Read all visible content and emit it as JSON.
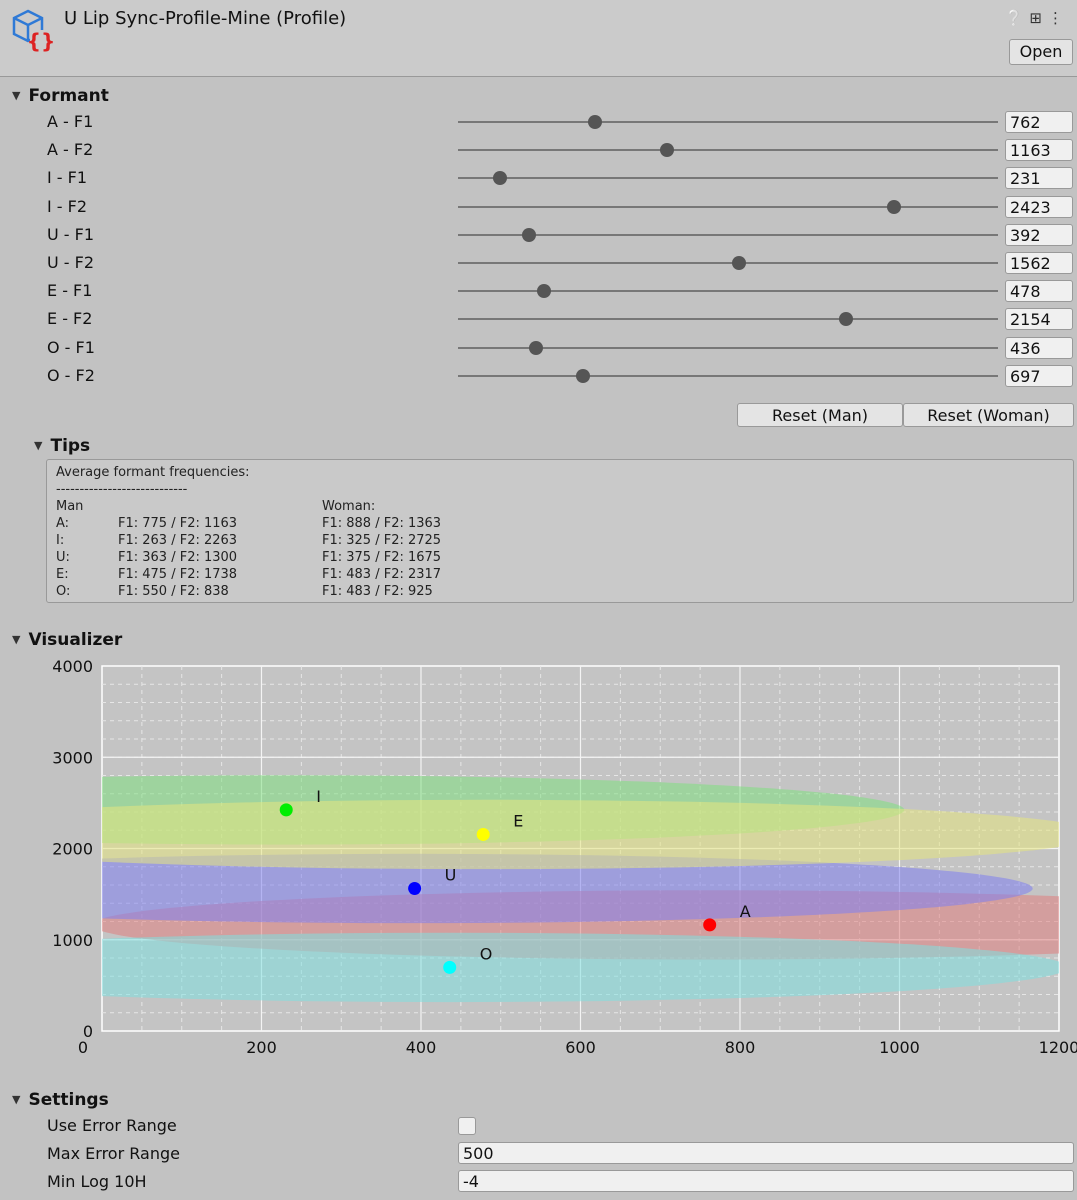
{
  "header": {
    "title": "U Lip Sync-Profile-Mine (Profile)",
    "open_label": "Open",
    "icons": [
      "help-icon",
      "settings-sliders-icon",
      "more-vert-icon"
    ]
  },
  "formant": {
    "heading": "Formant",
    "slider_max": 3000,
    "rows": [
      {
        "label": "A - F1",
        "value": "762"
      },
      {
        "label": "A - F2",
        "value": "1163"
      },
      {
        "label": "I - F1",
        "value": "231"
      },
      {
        "label": "I - F2",
        "value": "2423"
      },
      {
        "label": "U - F1",
        "value": "392"
      },
      {
        "label": "U - F2",
        "value": "1562"
      },
      {
        "label": "E - F1",
        "value": "478"
      },
      {
        "label": "E - F2",
        "value": "2154"
      },
      {
        "label": "O - F1",
        "value": "436"
      },
      {
        "label": "O - F2",
        "value": "697"
      }
    ],
    "reset_man": "Reset (Man)",
    "reset_woman": "Reset (Woman)"
  },
  "tips": {
    "heading": "Tips",
    "title": "Average formant frequencies:",
    "separator": "----------------------------",
    "man_header": "Man",
    "woman_header": "Woman:",
    "rows": [
      {
        "vowel": "A:",
        "man": "F1: 775 / F2: 1163",
        "woman": "F1: 888 / F2: 1363"
      },
      {
        "vowel": "I:",
        "man": "F1: 263 / F2: 2263",
        "woman": "F1: 325 / F2: 2725"
      },
      {
        "vowel": "U:",
        "man": "F1: 363 / F2: 1300",
        "woman": "F1: 375 / F2: 1675"
      },
      {
        "vowel": "E:",
        "man": "F1: 475 / F2: 1738",
        "woman": "F1: 483 / F2: 2317"
      },
      {
        "vowel": "O:",
        "man": "F1: 550 / F2: 838",
        "woman": "F1: 483 / F2: 925"
      }
    ]
  },
  "visualizer": {
    "heading": "Visualizer"
  },
  "chart_data": {
    "type": "scatter",
    "xlim": [
      0,
      1200
    ],
    "ylim": [
      0,
      4000
    ],
    "xticks": [
      "0",
      "200",
      "400",
      "600",
      "800",
      "1000",
      "1200"
    ],
    "yticks": [
      "0",
      "1000",
      "2000",
      "3000",
      "4000"
    ],
    "grid": true,
    "points": [
      {
        "name": "A",
        "f1": 762,
        "f2": 1163,
        "color": "#ff0000",
        "fill": "#e08080"
      },
      {
        "name": "I",
        "f1": 231,
        "f2": 2423,
        "color": "#00ee00",
        "fill": "#80e080"
      },
      {
        "name": "U",
        "f1": 392,
        "f2": 1562,
        "color": "#0000ff",
        "fill": "#8080f0"
      },
      {
        "name": "E",
        "f1": 478,
        "f2": 2154,
        "color": "#ffff00",
        "fill": "#e6e680"
      },
      {
        "name": "O",
        "f1": 436,
        "f2": 697,
        "color": "#00ffff",
        "fill": "#80e0e0"
      }
    ],
    "error_range": 500
  },
  "settings": {
    "heading": "Settings",
    "use_error_range_label": "Use Error Range",
    "use_error_range": false,
    "max_error_range_label": "Max Error Range",
    "max_error_range": "500",
    "min_log_label": "Min Log 10H",
    "min_log": "-4"
  }
}
